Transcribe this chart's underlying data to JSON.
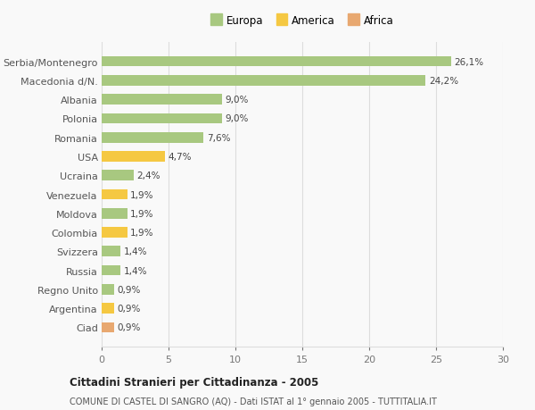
{
  "categories": [
    "Ciad",
    "Argentina",
    "Regno Unito",
    "Russia",
    "Svizzera",
    "Colombia",
    "Moldova",
    "Venezuela",
    "Ucraina",
    "USA",
    "Romania",
    "Polonia",
    "Albania",
    "Macedonia d/N.",
    "Serbia/Montenegro"
  ],
  "values": [
    0.9,
    0.9,
    0.9,
    1.4,
    1.4,
    1.9,
    1.9,
    1.9,
    2.4,
    4.7,
    7.6,
    9.0,
    9.0,
    24.2,
    26.1
  ],
  "colors": [
    "#E8A870",
    "#F5C842",
    "#A8C880",
    "#A8C880",
    "#A8C880",
    "#F5C842",
    "#A8C880",
    "#F5C842",
    "#A8C880",
    "#F5C842",
    "#A8C880",
    "#A8C880",
    "#A8C880",
    "#A8C880",
    "#A8C880"
  ],
  "labels": [
    "0,9%",
    "0,9%",
    "0,9%",
    "1,4%",
    "1,4%",
    "1,9%",
    "1,9%",
    "1,9%",
    "2,4%",
    "4,7%",
    "7,6%",
    "9,0%",
    "9,0%",
    "24,2%",
    "26,1%"
  ],
  "legend": [
    {
      "label": "Europa",
      "color": "#A8C880"
    },
    {
      "label": "America",
      "color": "#F5C842"
    },
    {
      "label": "Africa",
      "color": "#E8A870"
    }
  ],
  "xlim": [
    0,
    30
  ],
  "xticks": [
    0,
    5,
    10,
    15,
    20,
    25,
    30
  ],
  "title": "Cittadini Stranieri per Cittadinanza - 2005",
  "subtitle": "COMUNE DI CASTEL DI SANGRO (AQ) - Dati ISTAT al 1° gennaio 2005 - TUTTITALIA.IT",
  "background_color": "#f9f9f9",
  "grid_color": "#dddddd"
}
